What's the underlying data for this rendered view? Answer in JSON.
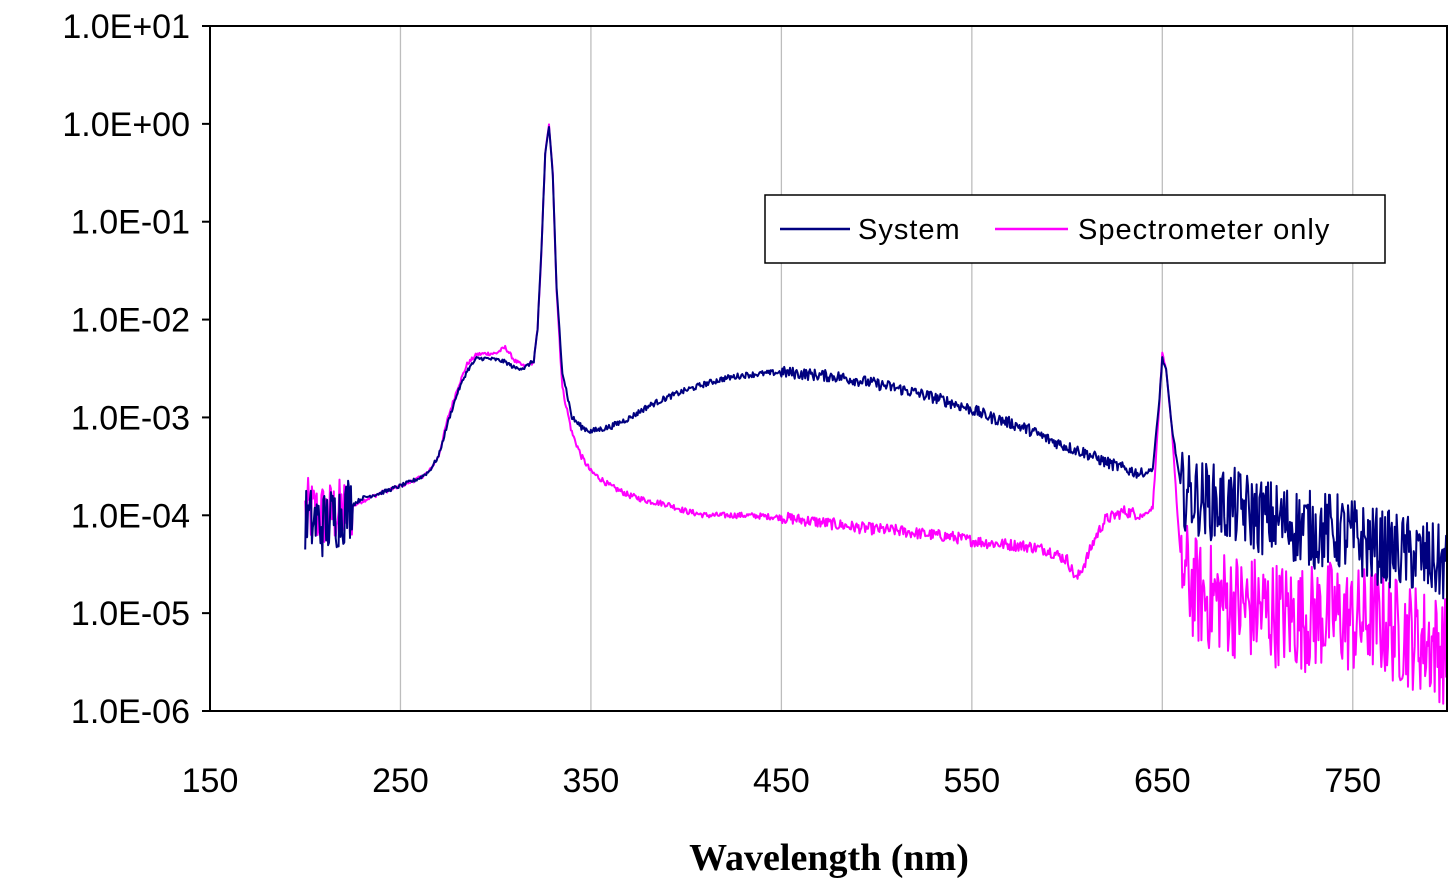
{
  "chart_data": {
    "type": "line",
    "title": "",
    "xlabel": "Wavelength (nm)",
    "ylabel": "",
    "x_scale": "linear",
    "y_scale": "log",
    "xlim": [
      150,
      800
    ],
    "ylim": [
      1e-06,
      10
    ],
    "x_ticks": [
      150,
      250,
      350,
      450,
      550,
      650,
      750
    ],
    "x_tick_labels": [
      "150",
      "250",
      "350",
      "450",
      "550",
      "650",
      "750"
    ],
    "y_ticks": [
      10,
      1,
      0.1,
      0.01,
      0.001,
      0.0001,
      1e-05,
      1e-06
    ],
    "y_tick_labels": [
      "1.0E+01",
      "1.0E+00",
      "1.0E-01",
      "1.0E-02",
      "1.0E-03",
      "1.0E-04",
      "1.0E-05",
      "1.0E-06"
    ],
    "grid": {
      "vertical": true,
      "horizontal": false
    },
    "legend_position": "upper-right",
    "series": [
      {
        "name": "System",
        "color": "#000080",
        "x": [
          200,
          210,
          220,
          230,
          240,
          250,
          260,
          265,
          270,
          275,
          280,
          285,
          290,
          295,
          300,
          305,
          310,
          315,
          320,
          322,
          324,
          326,
          328,
          330,
          332,
          335,
          340,
          345,
          350,
          360,
          370,
          380,
          390,
          400,
          410,
          420,
          430,
          440,
          450,
          460,
          470,
          480,
          490,
          500,
          510,
          520,
          530,
          540,
          550,
          560,
          570,
          580,
          590,
          600,
          610,
          620,
          630,
          640,
          645,
          648,
          650,
          652,
          655,
          660,
          670,
          680,
          690,
          700,
          710,
          720,
          730,
          740,
          750,
          760,
          770,
          780,
          790,
          800
        ],
        "y": [
          9e-05,
          8e-05,
          0.00011,
          0.00015,
          0.00017,
          0.0002,
          0.00024,
          0.00028,
          0.0004,
          0.0009,
          0.0018,
          0.003,
          0.004,
          0.004,
          0.0039,
          0.0037,
          0.0032,
          0.0032,
          0.0038,
          0.008,
          0.05,
          0.5,
          0.95,
          0.3,
          0.02,
          0.003,
          0.001,
          0.0008,
          0.00072,
          0.0008,
          0.00098,
          0.0013,
          0.0016,
          0.0019,
          0.0022,
          0.0025,
          0.0027,
          0.0028,
          0.0029,
          0.0028,
          0.0027,
          0.0026,
          0.0024,
          0.0022,
          0.002,
          0.0018,
          0.0016,
          0.0014,
          0.0012,
          0.001,
          0.00088,
          0.00075,
          0.0006,
          0.0005,
          0.00043,
          0.00035,
          0.0003,
          0.00026,
          0.0003,
          0.0012,
          0.004,
          0.003,
          0.0008,
          0.00018,
          0.00015,
          0.00013,
          0.00012,
          0.0001,
          9e-05,
          8e-05,
          7e-05,
          7e-05,
          6e-05,
          5e-05,
          4.5e-05,
          4e-05,
          3.5e-05,
          3e-05
        ]
      },
      {
        "name": "Spectrometer only",
        "color": "#ff00ff",
        "x": [
          200,
          210,
          220,
          230,
          240,
          250,
          260,
          265,
          270,
          275,
          280,
          285,
          290,
          295,
          300,
          305,
          310,
          315,
          320,
          322,
          324,
          326,
          328,
          330,
          332,
          335,
          340,
          345,
          350,
          360,
          370,
          380,
          390,
          400,
          410,
          420,
          430,
          440,
          450,
          460,
          470,
          480,
          490,
          500,
          510,
          520,
          530,
          540,
          550,
          560,
          570,
          580,
          590,
          600,
          605,
          610,
          615,
          620,
          630,
          640,
          645,
          648,
          650,
          652,
          655,
          658,
          660,
          665,
          670,
          680,
          690,
          700,
          710,
          720,
          730,
          740,
          750,
          760,
          770,
          780,
          790,
          800
        ],
        "y": [
          0.00011,
          0.0001,
          0.00011,
          0.00014,
          0.00017,
          0.0002,
          0.00024,
          0.00028,
          0.0004,
          0.001,
          0.002,
          0.0035,
          0.0044,
          0.0045,
          0.0045,
          0.0052,
          0.0038,
          0.0033,
          0.0037,
          0.008,
          0.05,
          0.5,
          0.97,
          0.3,
          0.02,
          0.002,
          0.0007,
          0.0004,
          0.00028,
          0.0002,
          0.00016,
          0.00014,
          0.00013,
          0.00011,
          0.0001,
          0.0001,
          0.0001,
          9.8e-05,
          9.5e-05,
          9e-05,
          8.5e-05,
          8e-05,
          7.5e-05,
          7.2e-05,
          7e-05,
          6.6e-05,
          6.3e-05,
          6e-05,
          5.5e-05,
          5.2e-05,
          5e-05,
          4.8e-05,
          4.4e-05,
          3.5e-05,
          2.2e-05,
          3.5e-05,
          6e-05,
          9e-05,
          0.00011,
          0.0001,
          0.00012,
          0.001,
          0.0044,
          0.003,
          0.0008,
          0.0001,
          3e-05,
          2e-05,
          1.5e-05,
          1.4e-05,
          1.2e-05,
          1.1e-05,
          1e-05,
          9e-06,
          9e-06,
          1e-05,
          8e-06,
          9e-06,
          7e-06,
          6e-06,
          5e-06,
          4e-06
        ]
      }
    ]
  }
}
